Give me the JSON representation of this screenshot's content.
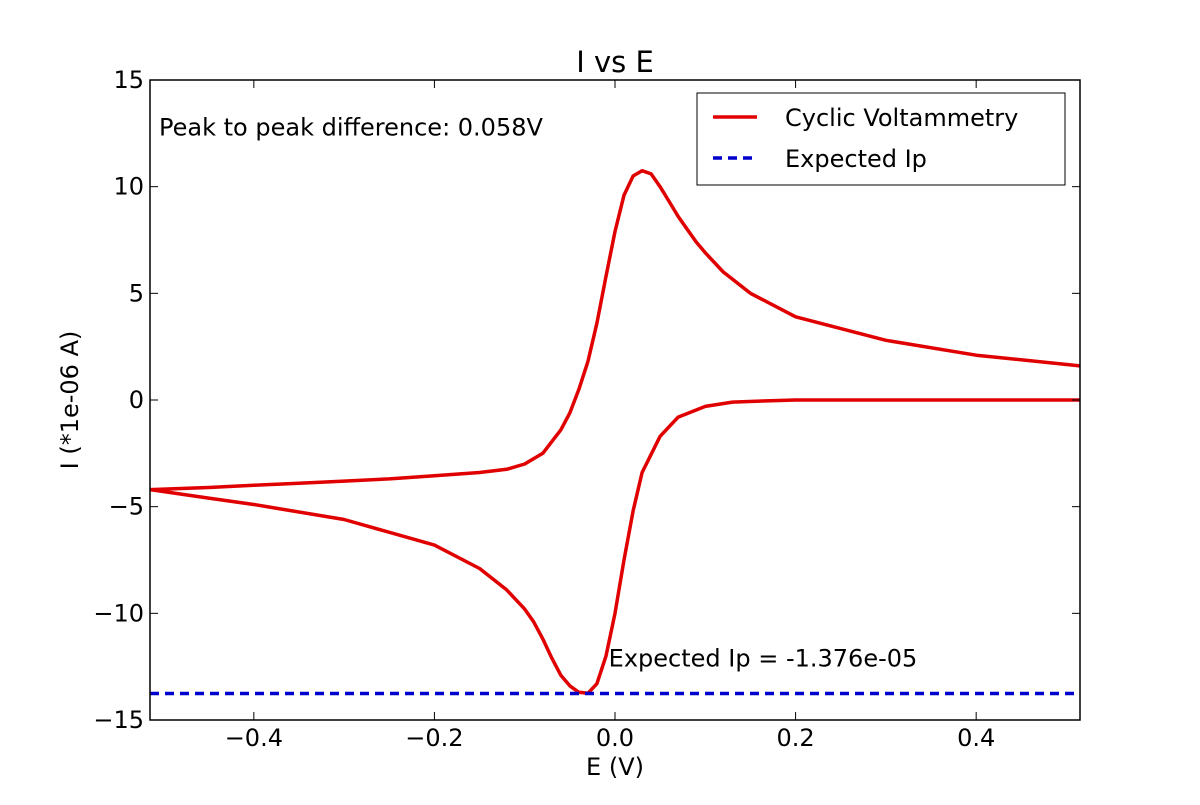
{
  "chart_data": {
    "type": "line",
    "title": "I vs E",
    "xlabel": "E (V)",
    "ylabel": "I (*1e-06 A)",
    "xlim": [
      -0.515,
      0.515
    ],
    "ylim": [
      -15,
      15
    ],
    "grid": false,
    "x_ticks": [
      -0.4,
      -0.2,
      0.0,
      0.2,
      0.4
    ],
    "x_tick_labels": [
      "−0.4",
      "−0.2",
      "0.0",
      "0.2",
      "0.4"
    ],
    "y_ticks": [
      15,
      10,
      5,
      0,
      -5,
      -10,
      -15
    ],
    "y_tick_labels": [
      "15",
      "10",
      "5",
      "0",
      "−5",
      "−10",
      "−15"
    ],
    "legend": {
      "position": "top-right",
      "entries": [
        {
          "label": "Cyclic Voltammetry",
          "color": "#e00000",
          "style": "solid"
        },
        {
          "label": "Expected Ip",
          "color": "#0000cc",
          "style": "dashed"
        }
      ]
    },
    "annotations": [
      {
        "text": "Peak to peak difference: 0.058V",
        "x": -0.505,
        "y": 12.4
      },
      {
        "text": "Expected Ip = -1.376e-05",
        "x": -0.007,
        "y": -12.5
      }
    ],
    "series": [
      {
        "name": "Cyclic Voltammetry",
        "color": "#e00000",
        "style": "solid",
        "x": [
          0.515,
          0.4,
          0.3,
          0.2,
          0.15,
          0.12,
          0.1,
          0.09,
          0.08,
          0.07,
          0.06,
          0.05,
          0.04,
          0.03,
          0.02,
          0.01,
          0.0,
          -0.01,
          -0.02,
          -0.03,
          -0.04,
          -0.05,
          -0.06,
          -0.08,
          -0.1,
          -0.12,
          -0.15,
          -0.2,
          -0.25,
          -0.3,
          -0.35,
          -0.4,
          -0.45,
          -0.515,
          -0.45,
          -0.4,
          -0.3,
          -0.2,
          -0.15,
          -0.12,
          -0.1,
          -0.09,
          -0.08,
          -0.07,
          -0.06,
          -0.05,
          -0.04,
          -0.03,
          -0.02,
          -0.01,
          0.0,
          0.01,
          0.02,
          0.03,
          0.05,
          0.07,
          0.1,
          0.13,
          0.16,
          0.2,
          0.3,
          0.4,
          0.515
        ],
        "y": [
          1.6,
          2.1,
          2.8,
          3.9,
          5.0,
          6.0,
          6.9,
          7.4,
          8.0,
          8.6,
          9.3,
          10.0,
          10.6,
          10.75,
          10.5,
          9.6,
          7.9,
          5.8,
          3.6,
          1.8,
          0.5,
          -0.6,
          -1.4,
          -2.5,
          -3.0,
          -3.25,
          -3.4,
          -3.55,
          -3.7,
          -3.8,
          -3.9,
          -4.0,
          -4.1,
          -4.2,
          -4.6,
          -4.9,
          -5.6,
          -6.8,
          -7.9,
          -8.9,
          -9.8,
          -10.4,
          -11.2,
          -12.1,
          -12.9,
          -13.4,
          -13.7,
          -13.75,
          -13.3,
          -12.0,
          -10.0,
          -7.5,
          -5.2,
          -3.4,
          -1.7,
          -0.8,
          -0.3,
          -0.1,
          -0.05,
          0.0,
          0.0,
          0.0,
          0.0
        ]
      },
      {
        "name": "Expected Ip",
        "color": "#0000cc",
        "style": "dashed",
        "x": [
          -0.515,
          0.515
        ],
        "y": [
          -13.76,
          -13.76
        ]
      }
    ]
  }
}
